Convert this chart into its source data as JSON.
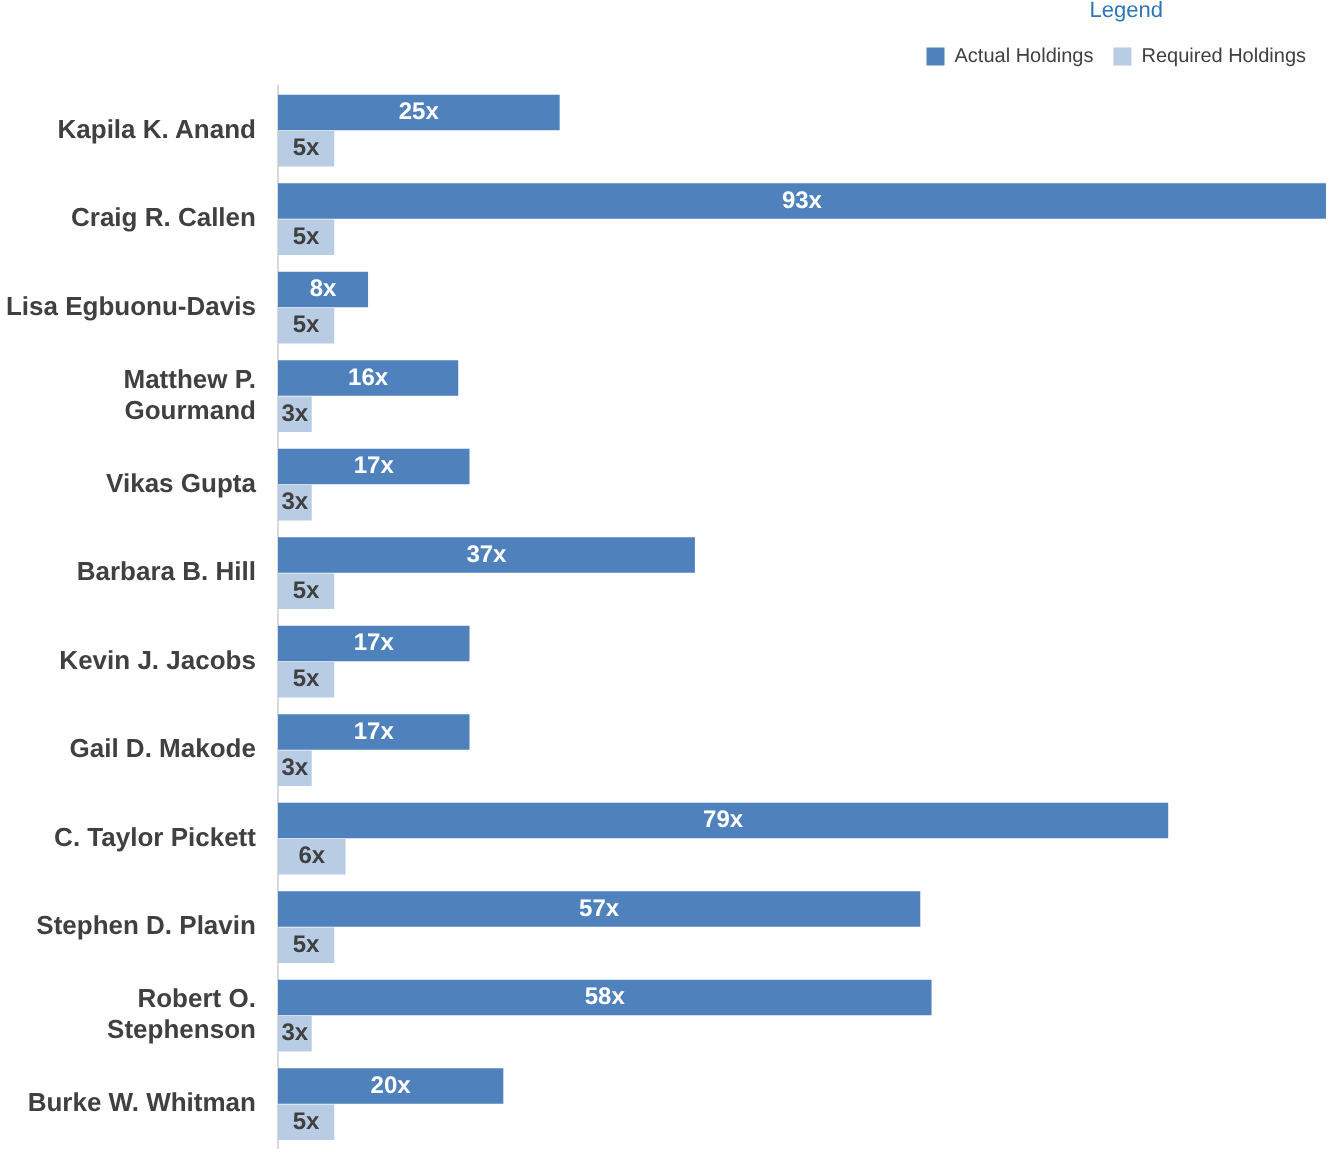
{
  "chart_data": {
    "type": "bar",
    "orientation": "horizontal",
    "legend_title": "Legend",
    "legend": "top right",
    "grid": false,
    "categories": [
      "Kapila K. Anand",
      "Craig R. Callen",
      "Lisa Egbuonu-Davis",
      "Matthew P. Gourmand",
      "Vikas Gupta",
      "Barbara B. Hill",
      "Kevin J. Jacobs",
      "Gail D. Makode",
      "C. Taylor Pickett",
      "Stephen D. Plavin",
      "Robert O. Stephenson",
      "Burke W. Whitman"
    ],
    "series": [
      {
        "name": "Actual Holdings",
        "color": "#4f81bd",
        "values": [
          25,
          93,
          8,
          16,
          17,
          37,
          17,
          17,
          79,
          57,
          58,
          20
        ],
        "value_labels": [
          "25x",
          "93x",
          "8x",
          "16x",
          "17x",
          "37x",
          "17x",
          "17x",
          "79x",
          "57x",
          "58x",
          "20x"
        ]
      },
      {
        "name": "Required Holdings",
        "color": "#b8cce4",
        "values": [
          5,
          5,
          5,
          3,
          3,
          5,
          5,
          3,
          6,
          5,
          3,
          5
        ],
        "value_labels": [
          "5x",
          "5x",
          "5x",
          "3x",
          "3x",
          "5x",
          "5x",
          "3x",
          "6x",
          "5x",
          "3x",
          "5x"
        ]
      }
    ]
  }
}
